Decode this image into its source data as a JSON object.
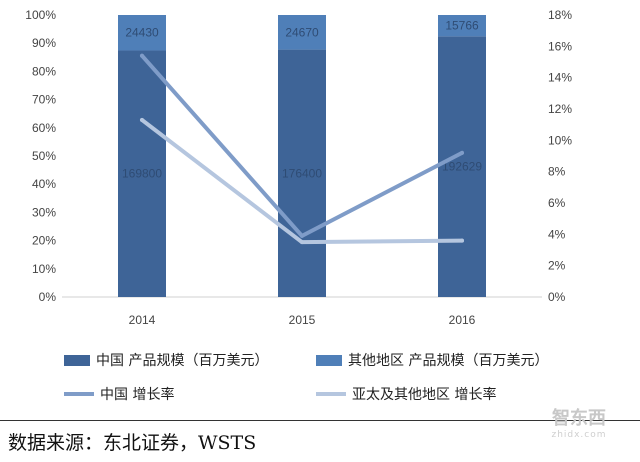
{
  "chart_data": {
    "type": "bar",
    "categories": [
      "2014",
      "2015",
      "2016"
    ],
    "bar_series": [
      {
        "name": "中国 产品规模（百万美元）",
        "values": [
          169800,
          176400,
          192629
        ],
        "color": "#3e6497",
        "label_color": "#2f4c74"
      },
      {
        "name": "其他地区 产品规模（百万美元）",
        "values": [
          24430,
          24670,
          15766
        ],
        "color": "#4f7fb8",
        "label_color": "#2f4c74"
      }
    ],
    "line_series": [
      {
        "name": "中国 增长率",
        "values": [
          15.4,
          3.9,
          9.2
        ],
        "color": "#7f9cc8"
      },
      {
        "name": "亚太及其他地区 增长率",
        "values": [
          11.3,
          3.5,
          3.6
        ],
        "color": "#b5c6df"
      }
    ],
    "left_axis": {
      "ticks": [
        "0%",
        "10%",
        "20%",
        "30%",
        "40%",
        "50%",
        "60%",
        "70%",
        "80%",
        "90%",
        "100%"
      ],
      "range": [
        0,
        100
      ]
    },
    "right_axis": {
      "ticks": [
        "0%",
        "2%",
        "4%",
        "6%",
        "8%",
        "10%",
        "12%",
        "14%",
        "16%",
        "18%"
      ],
      "range": [
        0,
        18
      ]
    },
    "stacking": "percent"
  },
  "legend": [
    {
      "label": "中国 产品规模（百万美元）",
      "kind": "bar",
      "color": "#3e6497"
    },
    {
      "label": "其他地区 产品规模（百万美元）",
      "kind": "bar",
      "color": "#4f7fb8"
    },
    {
      "label": "中国 增长率",
      "kind": "line",
      "color": "#7f9cc8"
    },
    {
      "label": "亚太及其他地区 增长率",
      "kind": "line",
      "color": "#b5c6df"
    }
  ],
  "source": "数据来源：东北证券，WSTS",
  "watermark": {
    "main": "智东西",
    "sub": "zhidx.com"
  }
}
